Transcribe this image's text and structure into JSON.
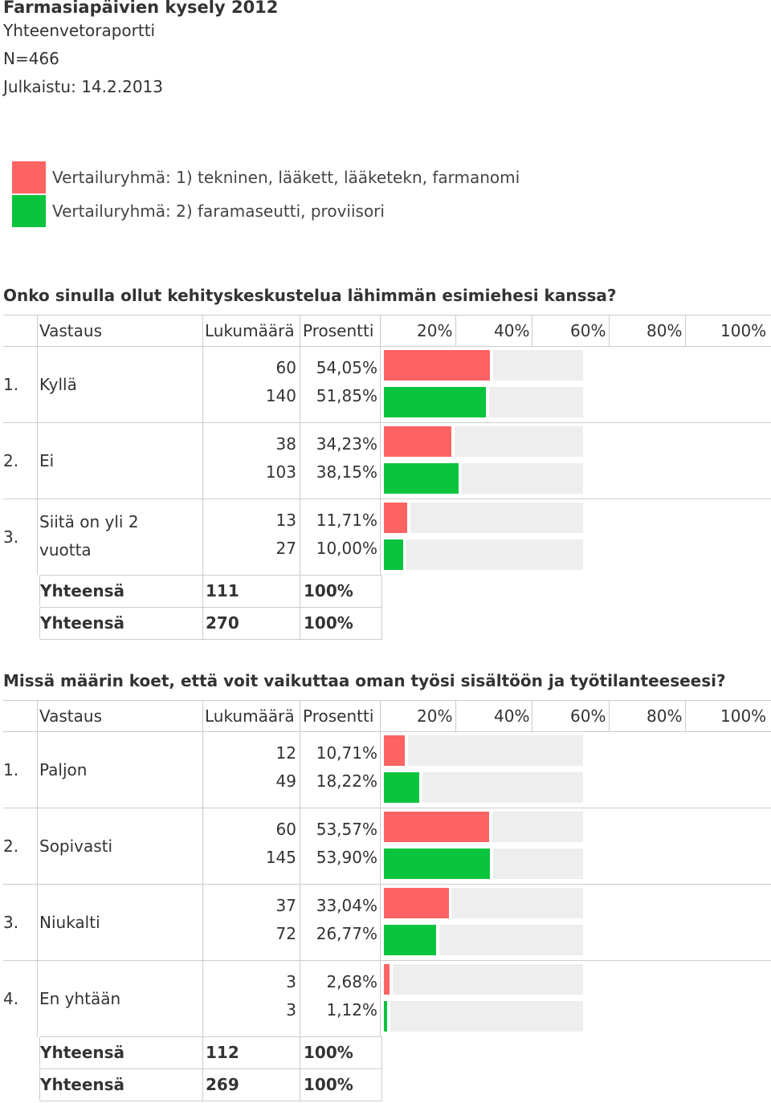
{
  "header": {
    "title": "Farmasiapäivien kysely 2012",
    "subtitle": "Yhteenvetoraportti",
    "n": "N=466",
    "published": "Julkaistu: 14.2.2013"
  },
  "colors": {
    "group1": "#fe6363",
    "group2": "#0bc43d",
    "track": "#eeeeee"
  },
  "legend": [
    {
      "label": "Vertailuryhmä: 1) tekninen, lääkett, lääketekn, farmanomi"
    },
    {
      "label": "Vertailuryhmä: 2) faramaseutti, proviisori"
    }
  ],
  "columns": {
    "answer": "Vastaus",
    "count": "Lukumäärä",
    "percent": "Prosentti",
    "scale": [
      "20%",
      "40%",
      "60%",
      "80%",
      "100%"
    ]
  },
  "questions": [
    {
      "title": "Onko sinulla ollut kehityskeskustelua lähimmän esimiehesi kanssa?",
      "rows": [
        {
          "num": "1.",
          "answer": [
            "Kyllä"
          ],
          "counts": [
            "60",
            "140"
          ],
          "percents": [
            "54,05%",
            "51,85%"
          ],
          "values": [
            54.05,
            51.85
          ]
        },
        {
          "num": "2.",
          "answer": [
            "Ei"
          ],
          "counts": [
            "38",
            "103"
          ],
          "percents": [
            "34,23%",
            "38,15%"
          ],
          "values": [
            34.23,
            38.15
          ]
        },
        {
          "num": "3.",
          "answer": [
            "Siitä on yli 2",
            "vuotta"
          ],
          "counts": [
            "13",
            "27"
          ],
          "percents": [
            "11,71%",
            "10,00%"
          ],
          "values": [
            11.71,
            10.0
          ]
        }
      ],
      "totals": [
        {
          "label": "Yhteensä",
          "count": "111",
          "percent": "100%"
        },
        {
          "label": "Yhteensä",
          "count": "270",
          "percent": "100%"
        }
      ]
    },
    {
      "title": "Missä määrin koet, että voit vaikuttaa oman työsi sisältöön ja työtilanteeseesi?",
      "rows": [
        {
          "num": "1.",
          "answer": [
            "Paljon"
          ],
          "counts": [
            "12",
            "49"
          ],
          "percents": [
            "10,71%",
            "18,22%"
          ],
          "values": [
            10.71,
            18.22
          ]
        },
        {
          "num": "2.",
          "answer": [
            "Sopivasti"
          ],
          "counts": [
            "60",
            "145"
          ],
          "percents": [
            "53,57%",
            "53,90%"
          ],
          "values": [
            53.57,
            53.9
          ]
        },
        {
          "num": "3.",
          "answer": [
            "Niukalti"
          ],
          "counts": [
            "37",
            "72"
          ],
          "percents": [
            "33,04%",
            "26,77%"
          ],
          "values": [
            33.04,
            26.77
          ]
        },
        {
          "num": "4.",
          "answer": [
            "En yhtään"
          ],
          "counts": [
            "3",
            "3"
          ],
          "percents": [
            "2,68%",
            "1,12%"
          ],
          "values": [
            2.68,
            1.12
          ]
        }
      ],
      "totals": [
        {
          "label": "Yhteensä",
          "count": "112",
          "percent": "100%"
        },
        {
          "label": "Yhteensä",
          "count": "269",
          "percent": "100%"
        }
      ]
    }
  ]
}
